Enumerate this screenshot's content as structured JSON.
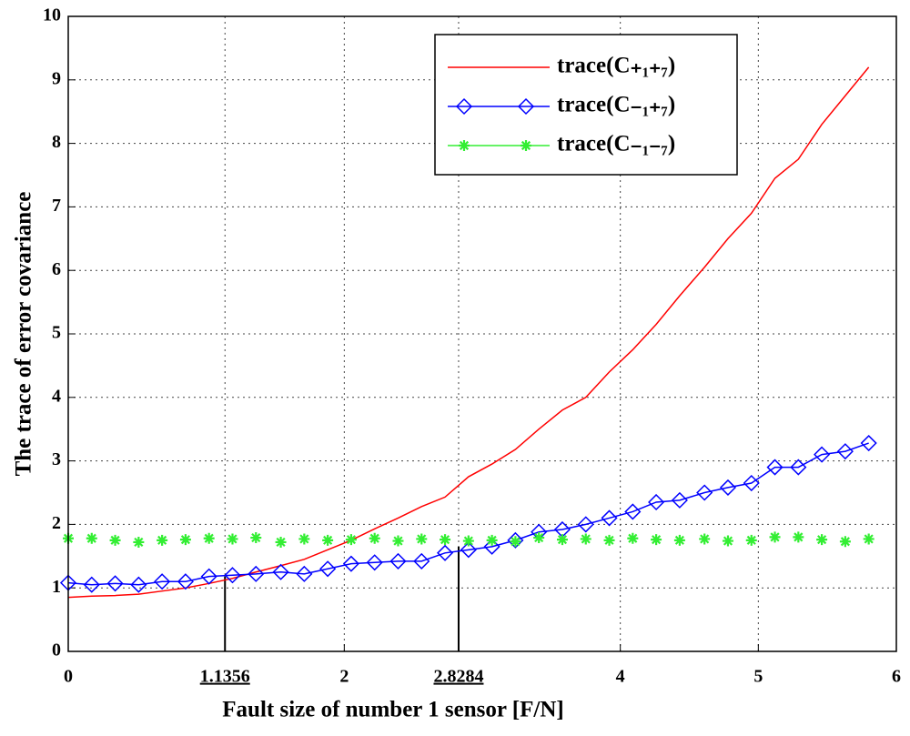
{
  "chart_data": {
    "type": "line",
    "xlabel": "Fault size of number 1 sensor [F/N]",
    "ylabel": "The trace of error covariance",
    "x": [
      0,
      0.17,
      0.34,
      0.51,
      0.68,
      0.85,
      1.02,
      1.19,
      1.36,
      1.54,
      1.71,
      1.88,
      2.05,
      2.22,
      2.39,
      2.56,
      2.73,
      2.9,
      3.07,
      3.24,
      3.41,
      3.58,
      3.75,
      3.92,
      4.09,
      4.26,
      4.43,
      4.61,
      4.78,
      4.95,
      5.12,
      5.29,
      5.46,
      5.63,
      5.8
    ],
    "series": [
      {
        "name": "trace(C₊₁₊₇)",
        "color": "#ff0000",
        "marker": "none",
        "linestyle": "solid",
        "values": [
          0.85,
          0.87,
          0.88,
          0.9,
          0.95,
          1.0,
          1.07,
          1.15,
          1.25,
          1.35,
          1.45,
          1.6,
          1.75,
          1.93,
          2.1,
          2.28,
          2.43,
          2.75,
          2.95,
          3.18,
          3.5,
          3.8,
          4.0,
          4.4,
          4.75,
          5.15,
          5.6,
          6.05,
          6.5,
          6.9,
          7.45,
          7.75,
          8.3,
          8.75,
          9.2
        ]
      },
      {
        "name": "trace(C₋₁₊₇)",
        "color": "#0000ff",
        "marker": "diamond",
        "linestyle": "solid",
        "values": [
          1.08,
          1.05,
          1.07,
          1.05,
          1.1,
          1.1,
          1.18,
          1.2,
          1.22,
          1.25,
          1.22,
          1.3,
          1.38,
          1.4,
          1.42,
          1.42,
          1.55,
          1.6,
          1.65,
          1.75,
          1.88,
          1.92,
          2.0,
          2.1,
          2.2,
          2.35,
          2.38,
          2.5,
          2.58,
          2.65,
          2.9,
          2.9,
          3.1,
          3.15,
          3.28
        ]
      },
      {
        "name": "trace(C₋₁₋₇)",
        "color": "#33ee33",
        "marker": "star",
        "linestyle": "none",
        "values": [
          1.78,
          1.78,
          1.75,
          1.72,
          1.75,
          1.76,
          1.78,
          1.77,
          1.79,
          1.72,
          1.77,
          1.75,
          1.76,
          1.78,
          1.74,
          1.77,
          1.76,
          1.74,
          1.75,
          1.73,
          1.79,
          1.76,
          1.77,
          1.75,
          1.78,
          1.76,
          1.75,
          1.77,
          1.74,
          1.75,
          1.8,
          1.8,
          1.76,
          1.73,
          1.77
        ]
      }
    ],
    "vlines": [
      {
        "x": 1.1356,
        "y": 1.18
      },
      {
        "x": 2.8284,
        "y": 1.65
      }
    ],
    "xlim": [
      0,
      6
    ],
    "xticks": [
      0,
      1.1356,
      2,
      2.8284,
      4,
      5,
      6
    ],
    "ylim": [
      0,
      10
    ],
    "yticks": [
      0,
      1,
      2,
      3,
      4,
      5,
      6,
      7,
      8,
      9,
      10
    ],
    "grid": true,
    "legend": "upper right"
  }
}
